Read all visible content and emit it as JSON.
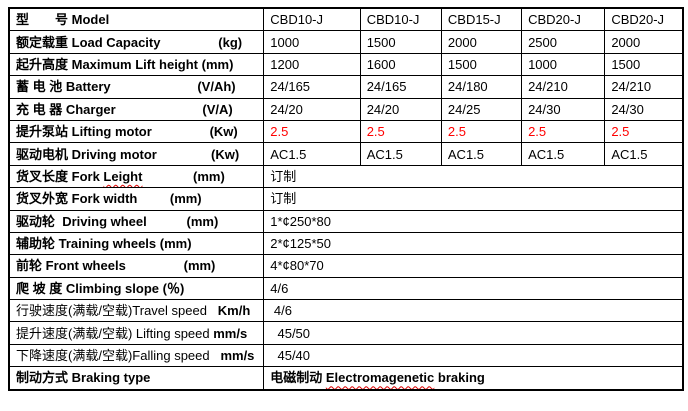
{
  "document": {
    "background_color": "#ffffff",
    "text_color": "#000000",
    "value_red_color": "#ff0000",
    "spellcheck_underline_color": "#dd0000"
  },
  "table": {
    "columns": 6,
    "rows": [
      {
        "id": "model",
        "label": [
          {
            "t": "型　　号 ",
            "b": true
          },
          {
            "t": "Model",
            "b": true
          }
        ],
        "cells": [
          "CBD10-J",
          "CBD10-J",
          "CBD15-J",
          "CBD20-J",
          "CBD20-J"
        ]
      },
      {
        "id": "load-capacity",
        "label": [
          {
            "t": "额定载重 ",
            "b": true
          },
          {
            "t": "Load Capacity",
            "b": true
          },
          {
            "t": "                ",
            "b": false
          },
          {
            "t": "(kg)",
            "b": true
          }
        ],
        "cells": [
          "1000",
          "1500",
          "2000",
          "2500",
          "2000"
        ]
      },
      {
        "id": "max-lift-height",
        "label": [
          {
            "t": "起升高度 ",
            "b": true
          },
          {
            "t": "Maximum Lift height (mm)",
            "b": true
          }
        ],
        "cells": [
          "1200",
          "1600",
          "1500",
          "1000",
          "1500"
        ]
      },
      {
        "id": "battery",
        "label": [
          {
            "t": "蓄 电 池 ",
            "b": true
          },
          {
            "t": "Battery",
            "b": true
          },
          {
            "t": "                        ",
            "b": false
          },
          {
            "t": "(V/Ah)",
            "b": true
          }
        ],
        "cells": [
          "24/165",
          "24/165",
          "24/180",
          "24/210",
          "24/210"
        ]
      },
      {
        "id": "charger",
        "label": [
          {
            "t": "充 电 器 ",
            "b": true
          },
          {
            "t": "Charger",
            "b": true
          },
          {
            "t": "                        ",
            "b": false
          },
          {
            "t": "(V/A)",
            "b": true
          }
        ],
        "cells": [
          "24/20",
          "24/20",
          "24/25",
          "24/30",
          "24/30"
        ]
      },
      {
        "id": "lifting-motor",
        "label": [
          {
            "t": "提升泵站 ",
            "b": true
          },
          {
            "t": "Lifting motor",
            "b": true
          },
          {
            "t": "                ",
            "b": false
          },
          {
            "t": "(Kw)",
            "b": true
          }
        ],
        "cells": [
          "2.5",
          "2.5",
          "2.5",
          "2.5",
          "2.5"
        ],
        "red": true
      },
      {
        "id": "driving-motor",
        "label": [
          {
            "t": "驱动电机 ",
            "b": true
          },
          {
            "t": "Driving motor",
            "b": true
          },
          {
            "t": "               ",
            "b": false
          },
          {
            "t": "(Kw)",
            "b": true
          }
        ],
        "cells": [
          "AC1.5",
          "AC1.5",
          "AC1.5",
          "AC1.5",
          "AC1.5"
        ]
      },
      {
        "id": "fork-length",
        "label": [
          {
            "t": "货叉长度 ",
            "b": true
          },
          {
            "t": "Fork ",
            "b": true
          },
          {
            "t": "Leight",
            "b": true,
            "wavy": true
          },
          {
            "t": "              ",
            "b": false
          },
          {
            "t": "(mm)",
            "b": true
          }
        ],
        "span": [
          {
            "t": "订制",
            "b": false
          }
        ]
      },
      {
        "id": "fork-width",
        "label": [
          {
            "t": "货叉外宽 ",
            "b": true
          },
          {
            "t": "Fork width",
            "b": true
          },
          {
            "t": "         ",
            "b": false
          },
          {
            "t": "(mm)",
            "b": true
          }
        ],
        "span": [
          {
            "t": "订制",
            "b": false
          }
        ]
      },
      {
        "id": "driving-wheel",
        "label": [
          {
            "t": "驱动轮  ",
            "b": true
          },
          {
            "t": "Driving wheel",
            "b": true
          },
          {
            "t": "           ",
            "b": false
          },
          {
            "t": "(mm)",
            "b": true
          }
        ],
        "span": [
          {
            "t": "1*¢250*80",
            "b": false
          }
        ]
      },
      {
        "id": "training-wheels",
        "label": [
          {
            "t": "辅助轮 ",
            "b": true
          },
          {
            "t": "Training wheels (mm)",
            "b": true
          }
        ],
        "span": [
          {
            "t": "2*¢125*50",
            "b": false
          }
        ]
      },
      {
        "id": "front-wheels",
        "label": [
          {
            "t": "前轮 ",
            "b": true
          },
          {
            "t": "Front wheels",
            "b": true
          },
          {
            "t": "                ",
            "b": false
          },
          {
            "t": "(mm)",
            "b": true
          }
        ],
        "span": [
          {
            "t": "4*¢80*70",
            "b": false
          }
        ]
      },
      {
        "id": "climbing-slope",
        "label": [
          {
            "t": "爬 坡 度 ",
            "b": true
          },
          {
            "t": "Climbing slope (％)",
            "b": true
          }
        ],
        "span": [
          {
            "t": "4/6",
            "b": false
          }
        ]
      },
      {
        "id": "travel-speed",
        "label": [
          {
            "t": "行驶速度(满载/空载)",
            "b": false
          },
          {
            "t": "Travel speed",
            "b": false
          },
          {
            "t": "   ",
            "b": false
          },
          {
            "t": "Km/h",
            "b": true
          }
        ],
        "span": [
          {
            "t": " 4/6",
            "b": false
          }
        ]
      },
      {
        "id": "lifting-speed",
        "label": [
          {
            "t": "提升速度(满载/空载) ",
            "b": false
          },
          {
            "t": "Lifting speed ",
            "b": false
          },
          {
            "t": "mm/s",
            "b": true
          }
        ],
        "span": [
          {
            "t": "  45/50",
            "b": false
          }
        ]
      },
      {
        "id": "falling-speed",
        "label": [
          {
            "t": "下降速度(满载/空载)",
            "b": false
          },
          {
            "t": "Falling speed",
            "b": false
          },
          {
            "t": "   ",
            "b": false
          },
          {
            "t": "mm/s",
            "b": true
          }
        ],
        "span": [
          {
            "t": "  45/40",
            "b": false
          }
        ]
      },
      {
        "id": "braking-type",
        "label": [
          {
            "t": "制动方式 ",
            "b": true
          },
          {
            "t": "Braking type",
            "b": true
          }
        ],
        "span": [
          {
            "t": "电磁制动 ",
            "b": true
          },
          {
            "t": "Electromagenetic",
            "b": true,
            "wavy": true
          },
          {
            "t": " braking",
            "b": true
          }
        ]
      }
    ]
  }
}
